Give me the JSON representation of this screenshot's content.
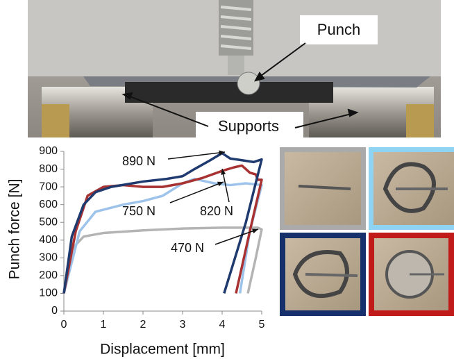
{
  "photo_labels": {
    "punch": "Punch",
    "supports": "Supports"
  },
  "chart_data": {
    "type": "line",
    "xlabel": "Displacement [mm]",
    "ylabel": "Punch force [N]",
    "xlim": [
      0,
      5
    ],
    "xticks": [
      0,
      1,
      2,
      3,
      4,
      5
    ],
    "ylim": [
      0,
      900
    ],
    "yticks": [
      0,
      100,
      200,
      300,
      400,
      500,
      600,
      700,
      800,
      900
    ],
    "grid": false,
    "annotations": [
      "890 N",
      "750 N",
      "820 N",
      "470 N"
    ],
    "series": [
      {
        "color": "#1f3a6e",
        "x": [
          0,
          0.2,
          0.5,
          0.8,
          1.2,
          2,
          2.6,
          3,
          3.3,
          3.7,
          4.0,
          4.2,
          4.5,
          4.8,
          5.0,
          4.6,
          4.05
        ],
        "values": [
          100,
          420,
          600,
          670,
          700,
          730,
          745,
          760,
          800,
          850,
          890,
          860,
          850,
          840,
          855,
          500,
          100
        ]
      },
      {
        "color": "#a83232",
        "x": [
          0,
          0.3,
          0.6,
          1,
          1.5,
          2,
          2.5,
          3,
          3.5,
          4,
          4.3,
          4.5,
          4.7,
          4.85,
          4.9,
          5.0,
          4.7,
          4.35
        ],
        "values": [
          100,
          450,
          650,
          700,
          710,
          700,
          700,
          720,
          750,
          790,
          810,
          820,
          780,
          770,
          740,
          740,
          450,
          100
        ]
      },
      {
        "color": "#9ec3ea",
        "x": [
          0,
          0.4,
          0.8,
          1.5,
          2,
          2.5,
          3,
          3.3,
          3.6,
          3.8,
          4.2,
          4.6,
          5.0,
          4.7,
          4.45
        ],
        "values": [
          100,
          450,
          560,
          600,
          620,
          650,
          720,
          745,
          730,
          720,
          710,
          720,
          710,
          450,
          100
        ]
      },
      {
        "color": "#b4b4b4",
        "x": [
          0,
          0.2,
          0.5,
          1,
          2,
          3,
          4,
          4.9,
          5.0,
          4.85,
          4.65
        ],
        "values": [
          100,
          350,
          420,
          440,
          455,
          465,
          470,
          470,
          460,
          300,
          100
        ]
      }
    ]
  }
}
